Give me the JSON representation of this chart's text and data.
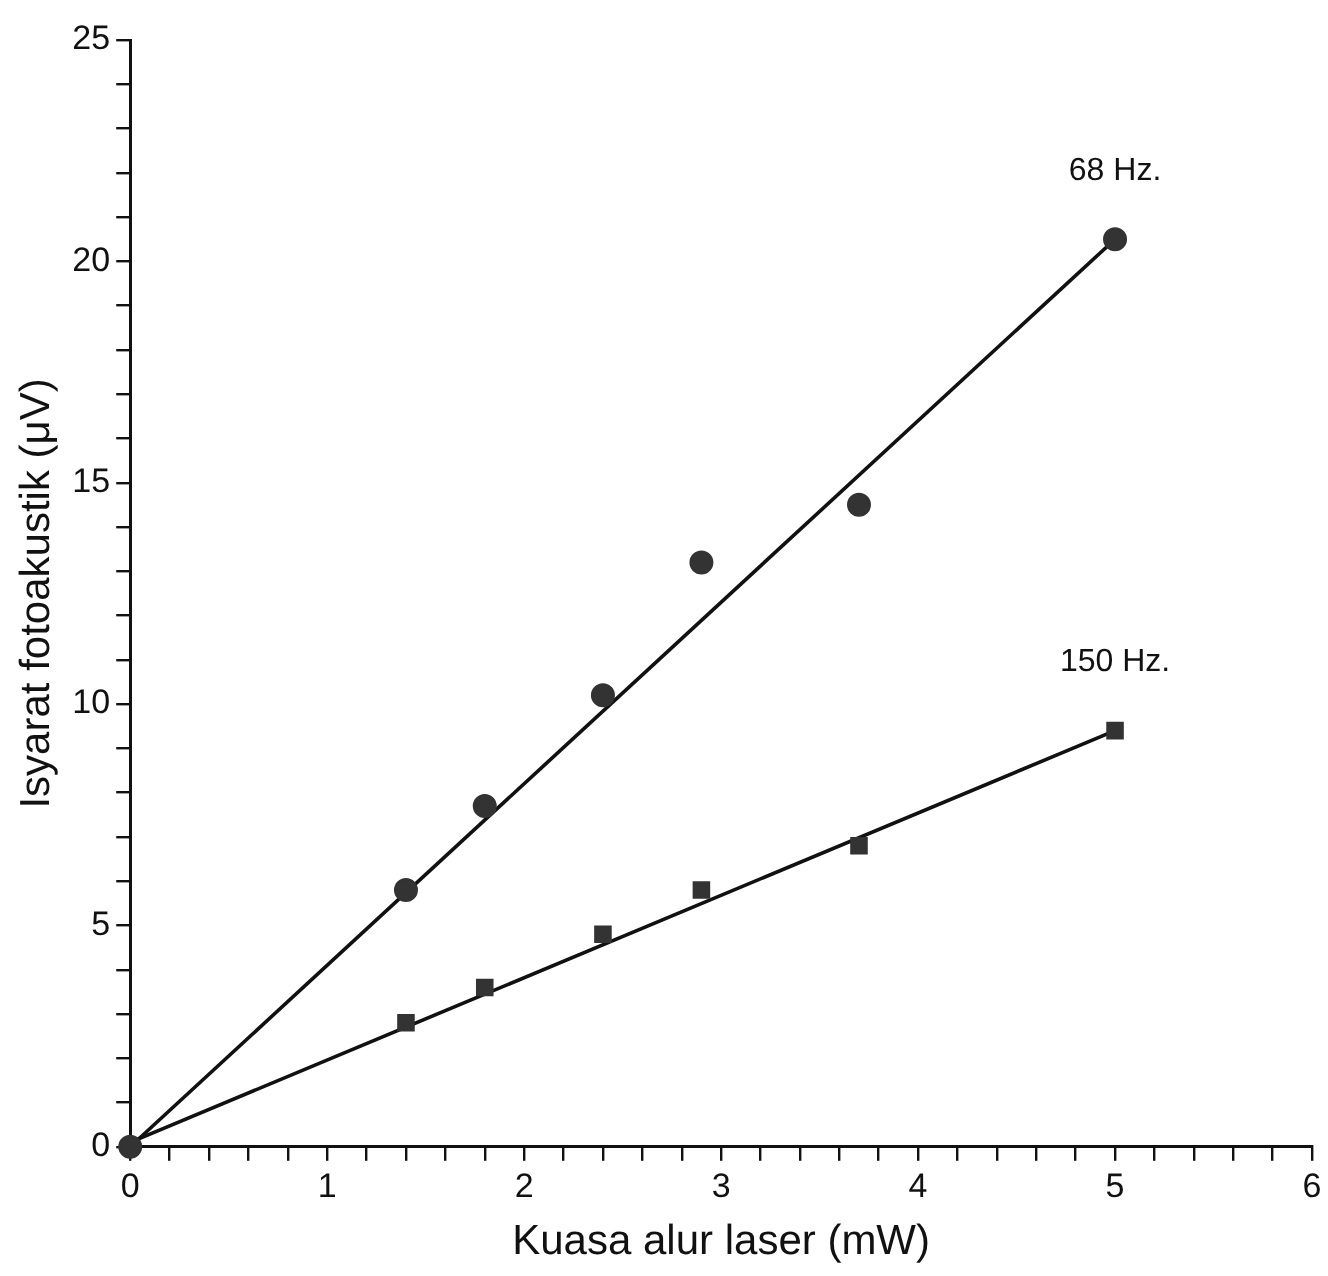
{
  "chart_data": {
    "type": "scatter",
    "xlabel": "Kuasa alur laser (mW)",
    "ylabel": "Isyarat fotoakustik (μV)",
    "xlim": [
      0,
      6
    ],
    "ylim": [
      0,
      25
    ],
    "xticks": [
      0,
      {
        "value": 0.2,
        "label": null
      },
      {
        "value": 0.4,
        "label": null
      },
      {
        "value": 0.6,
        "label": null
      },
      {
        "value": 0.8,
        "label": null
      },
      1,
      {
        "value": 1.2,
        "label": null
      },
      {
        "value": 1.4,
        "label": null
      },
      {
        "value": 1.6,
        "label": null
      },
      {
        "value": 1.8,
        "label": null
      },
      2,
      {
        "value": 2.2,
        "label": null
      },
      {
        "value": 2.4,
        "label": null
      },
      {
        "value": 2.6,
        "label": null
      },
      {
        "value": 2.8,
        "label": null
      },
      3,
      {
        "value": 3.2,
        "label": null
      },
      {
        "value": 3.4,
        "label": null
      },
      {
        "value": 3.6,
        "label": null
      },
      {
        "value": 3.8,
        "label": null
      },
      4,
      {
        "value": 4.2,
        "label": null
      },
      {
        "value": 4.4,
        "label": null
      },
      {
        "value": 4.6,
        "label": null
      },
      {
        "value": 4.8,
        "label": null
      },
      5,
      {
        "value": 5.2,
        "label": null
      },
      {
        "value": 5.4,
        "label": null
      },
      {
        "value": 5.6,
        "label": null
      },
      {
        "value": 5.8,
        "label": null
      },
      6
    ],
    "yticks": [
      0,
      {
        "value": 1,
        "label": null
      },
      {
        "value": 2,
        "label": null
      },
      {
        "value": 3,
        "label": null
      },
      {
        "value": 4,
        "label": null
      },
      5,
      {
        "value": 6,
        "label": null
      },
      {
        "value": 7,
        "label": null
      },
      {
        "value": 8,
        "label": null
      },
      {
        "value": 9,
        "label": null
      },
      10,
      {
        "value": 11,
        "label": null
      },
      {
        "value": 12,
        "label": null
      },
      {
        "value": 13,
        "label": null
      },
      {
        "value": 14,
        "label": null
      },
      15,
      {
        "value": 16,
        "label": null
      },
      {
        "value": 17,
        "label": null
      },
      {
        "value": 18,
        "label": null
      },
      {
        "value": 19,
        "label": null
      },
      20,
      {
        "value": 21,
        "label": null
      },
      {
        "value": 22,
        "label": null
      },
      {
        "value": 23,
        "label": null
      },
      {
        "value": 24,
        "label": null
      },
      25
    ],
    "grid": false,
    "legend": false,
    "series": [
      {
        "name": "68 Hz.",
        "marker": "circle",
        "color": "#333333",
        "x": [
          0,
          1.4,
          1.8,
          2.4,
          2.9,
          3.7,
          5.0
        ],
        "values": [
          0,
          5.8,
          7.7,
          10.2,
          13.2,
          14.5,
          20.5
        ]
      },
      {
        "name": "150 Hz.",
        "marker": "square",
        "color": "#333333",
        "x": [
          1.4,
          1.8,
          2.4,
          2.9,
          3.7,
          5.0
        ],
        "values": [
          2.8,
          3.6,
          4.8,
          5.8,
          6.8,
          9.4
        ]
      },
      {
        "type": "line",
        "marker": "none",
        "line_style": "solid",
        "color": "#111111",
        "x": [
          0,
          5.0
        ],
        "values": [
          0,
          20.5
        ]
      },
      {
        "type": "line",
        "marker": "none",
        "line_style": "solid",
        "color": "#111111",
        "x": [
          0,
          5.0
        ],
        "values": [
          0.1,
          9.4
        ]
      }
    ]
  }
}
